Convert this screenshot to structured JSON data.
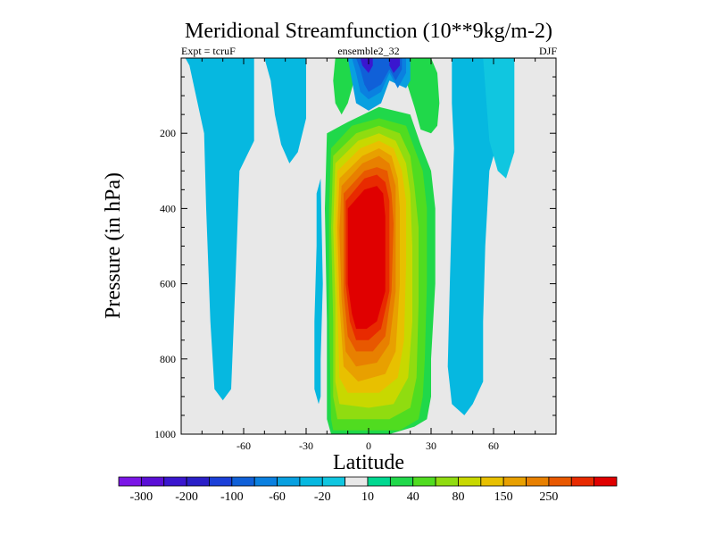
{
  "chart_data": {
    "type": "heatmap",
    "title": "Meridional Streamfunction (10**9kg/m-2)",
    "subtitle_left": "Expt = tcruF",
    "subtitle_center": "ensemble2_32",
    "subtitle_right": "DJF",
    "xlabel": "Latitude",
    "ylabel": "Pressure (in hPa)",
    "xlim": [
      -90,
      90
    ],
    "ylim": [
      1000,
      0
    ],
    "x_ticks": [
      -60,
      -30,
      0,
      30,
      60
    ],
    "y_ticks": [
      200,
      400,
      600,
      800,
      1000
    ],
    "colorbar": {
      "colors": [
        "#7b16e6",
        "#5a0fd6",
        "#3a16cf",
        "#2a1fc8",
        "#1b40d8",
        "#1060d8",
        "#0a80e0",
        "#08a0e0",
        "#06b8e0",
        "#10c6e0",
        "#e8e8e8",
        "#00d890",
        "#20d84a",
        "#50dc20",
        "#90dc10",
        "#c8d800",
        "#e8c000",
        "#e8a000",
        "#e88000",
        "#e85800",
        "#e82a00",
        "#e00000"
      ],
      "labels": [
        "-300",
        "-200",
        "-100",
        "-60",
        "-20",
        "10",
        "40",
        "80",
        "150",
        "250"
      ]
    },
    "contour_regions": [
      {
        "level": "-20",
        "color": "#06b8e0",
        "polygon": [
          [
            -88,
            0
          ],
          [
            -55,
            0
          ],
          [
            -55,
            220
          ],
          [
            -62,
            300
          ],
          [
            -64,
            600
          ],
          [
            -66,
            880
          ],
          [
            -70,
            910
          ],
          [
            -74,
            880
          ],
          [
            -76,
            700
          ],
          [
            -78,
            400
          ],
          [
            -79,
            200
          ],
          [
            -86,
            20
          ]
        ]
      },
      {
        "level": "-20",
        "color": "#06b8e0",
        "polygon": [
          [
            -50,
            0
          ],
          [
            -30,
            0
          ],
          [
            -30,
            160
          ],
          [
            -34,
            250
          ],
          [
            -38,
            280
          ],
          [
            -42,
            230
          ],
          [
            -45,
            150
          ],
          [
            -47,
            60
          ]
        ]
      },
      {
        "level": "-20",
        "color": "#06b8e0",
        "polygon": [
          [
            -62,
            0
          ],
          [
            -60,
            0
          ],
          [
            -60,
            60
          ],
          [
            -61,
            120
          ],
          [
            -62,
            60
          ]
        ]
      },
      {
        "level": "-20",
        "color": "#06b8e0",
        "polygon": [
          [
            -25,
            360
          ],
          [
            -23,
            320
          ],
          [
            -22,
            600
          ],
          [
            -23,
            800
          ],
          [
            -23,
            900
          ],
          [
            -24,
            920
          ],
          [
            -26,
            880
          ],
          [
            -26,
            700
          ],
          [
            -25,
            500
          ]
        ]
      },
      {
        "level": "-20",
        "color": "#06b8e0",
        "polygon": [
          [
            40,
            0
          ],
          [
            62,
            0
          ],
          [
            62,
            220
          ],
          [
            58,
            300
          ],
          [
            56,
            500
          ],
          [
            55,
            700
          ],
          [
            55,
            860
          ],
          [
            50,
            920
          ],
          [
            46,
            950
          ],
          [
            40,
            920
          ],
          [
            38,
            820
          ],
          [
            39,
            600
          ],
          [
            40,
            400
          ],
          [
            41,
            240
          ],
          [
            40,
            120
          ]
        ]
      },
      {
        "level": "-20",
        "color": "#10c6e0",
        "polygon": [
          [
            55,
            0
          ],
          [
            70,
            0
          ],
          [
            70,
            250
          ],
          [
            66,
            320
          ],
          [
            62,
            300
          ],
          [
            58,
            220
          ]
        ]
      },
      {
        "level": "10",
        "color": "#20d84a",
        "polygon": [
          [
            -16,
            0
          ],
          [
            -8,
            0
          ],
          [
            -7,
            60
          ],
          [
            -10,
            120
          ],
          [
            -13,
            150
          ],
          [
            -16,
            120
          ],
          [
            -17,
            60
          ]
        ]
      },
      {
        "level": "10",
        "color": "#20d84a",
        "polygon": [
          [
            -20,
            200
          ],
          [
            -10,
            170
          ],
          [
            5,
            130
          ],
          [
            20,
            150
          ],
          [
            25,
            230
          ],
          [
            30,
            300
          ],
          [
            32,
            400
          ],
          [
            32,
            600
          ],
          [
            30,
            800
          ],
          [
            30,
            900
          ],
          [
            28,
            960
          ],
          [
            22,
            980
          ],
          [
            10,
            1000
          ],
          [
            -18,
            1000
          ],
          [
            -20,
            960
          ],
          [
            -20,
            700
          ],
          [
            -21,
            400
          ]
        ]
      },
      {
        "level": "10",
        "color": "#20d84a",
        "polygon": [
          [
            16,
            0
          ],
          [
            30,
            0
          ],
          [
            33,
            40
          ],
          [
            34,
            120
          ],
          [
            33,
            180
          ],
          [
            30,
            200
          ],
          [
            25,
            190
          ],
          [
            22,
            130
          ],
          [
            18,
            60
          ]
        ]
      },
      {
        "level": "40",
        "color": "#50dc20",
        "polygon": [
          [
            -18,
            240
          ],
          [
            -8,
            180
          ],
          [
            5,
            160
          ],
          [
            18,
            180
          ],
          [
            22,
            240
          ],
          [
            26,
            300
          ],
          [
            28,
            400
          ],
          [
            28,
            600
          ],
          [
            27,
            800
          ],
          [
            26,
            900
          ],
          [
            24,
            960
          ],
          [
            15,
            990
          ],
          [
            -17,
            990
          ],
          [
            -18,
            960
          ],
          [
            -19,
            700
          ],
          [
            -19,
            400
          ]
        ]
      },
      {
        "level": "80",
        "color": "#90dc10",
        "polygon": [
          [
            -17,
            260
          ],
          [
            -6,
            200
          ],
          [
            5,
            180
          ],
          [
            15,
            200
          ],
          [
            20,
            260
          ],
          [
            22,
            340
          ],
          [
            24,
            450
          ],
          [
            24,
            650
          ],
          [
            23,
            850
          ],
          [
            20,
            930
          ],
          [
            10,
            960
          ],
          [
            -15,
            960
          ],
          [
            -17,
            900
          ],
          [
            -17,
            700
          ],
          [
            -18,
            450
          ]
        ]
      },
      {
        "level": "150",
        "color": "#c8d800",
        "polygon": [
          [
            -16,
            280
          ],
          [
            -5,
            220
          ],
          [
            5,
            200
          ],
          [
            13,
            220
          ],
          [
            18,
            280
          ],
          [
            20,
            360
          ],
          [
            21,
            500
          ],
          [
            21,
            700
          ],
          [
            19,
            850
          ],
          [
            12,
            920
          ],
          [
            0,
            930
          ],
          [
            -14,
            920
          ],
          [
            -16,
            860
          ],
          [
            -16,
            650
          ],
          [
            -17,
            450
          ]
        ]
      },
      {
        "level": "150",
        "color": "#e8c000",
        "polygon": [
          [
            -15,
            300
          ],
          [
            -4,
            240
          ],
          [
            5,
            220
          ],
          [
            12,
            240
          ],
          [
            16,
            300
          ],
          [
            18,
            380
          ],
          [
            18,
            550
          ],
          [
            17,
            750
          ],
          [
            14,
            850
          ],
          [
            5,
            890
          ],
          [
            -10,
            890
          ],
          [
            -14,
            850
          ],
          [
            -15,
            650
          ],
          [
            -16,
            450
          ]
        ]
      },
      {
        "level": "150",
        "color": "#e8a000",
        "polygon": [
          [
            -14,
            320
          ],
          [
            -3,
            260
          ],
          [
            5,
            240
          ],
          [
            11,
            260
          ],
          [
            14,
            320
          ],
          [
            15,
            400
          ],
          [
            15,
            600
          ],
          [
            13,
            780
          ],
          [
            8,
            840
          ],
          [
            -5,
            860
          ],
          [
            -12,
            820
          ],
          [
            -14,
            650
          ],
          [
            -15,
            450
          ]
        ]
      },
      {
        "level": "250",
        "color": "#e88000",
        "polygon": [
          [
            -13,
            340
          ],
          [
            -3,
            280
          ],
          [
            5,
            260
          ],
          [
            10,
            280
          ],
          [
            13,
            340
          ],
          [
            13,
            420
          ],
          [
            13,
            620
          ],
          [
            10,
            760
          ],
          [
            4,
            810
          ],
          [
            -6,
            820
          ],
          [
            -11,
            780
          ],
          [
            -13,
            640
          ],
          [
            -14,
            460
          ]
        ]
      },
      {
        "level": "250",
        "color": "#e85800",
        "polygon": [
          [
            -12,
            360
          ],
          [
            -2,
            300
          ],
          [
            4,
            290
          ],
          [
            9,
            300
          ],
          [
            11,
            360
          ],
          [
            12,
            440
          ],
          [
            11,
            620
          ],
          [
            8,
            740
          ],
          [
            2,
            780
          ],
          [
            -6,
            780
          ],
          [
            -10,
            740
          ],
          [
            -12,
            620
          ],
          [
            -12,
            460
          ]
        ]
      },
      {
        "level": "250",
        "color": "#e82a00",
        "polygon": [
          [
            -11,
            380
          ],
          [
            -2,
            320
          ],
          [
            4,
            310
          ],
          [
            8,
            330
          ],
          [
            10,
            380
          ],
          [
            10,
            460
          ],
          [
            10,
            620
          ],
          [
            6,
            720
          ],
          [
            0,
            750
          ],
          [
            -6,
            750
          ],
          [
            -9,
            700
          ],
          [
            -11,
            600
          ],
          [
            -11,
            480
          ]
        ]
      },
      {
        "level": "250",
        "color": "#e00000",
        "polygon": [
          [
            -10,
            400
          ],
          [
            -2,
            350
          ],
          [
            4,
            340
          ],
          [
            7,
            360
          ],
          [
            8,
            420
          ],
          [
            8,
            520
          ],
          [
            8,
            620
          ],
          [
            4,
            700
          ],
          [
            -1,
            720
          ],
          [
            -6,
            720
          ],
          [
            -8,
            680
          ],
          [
            -10,
            600
          ],
          [
            -10,
            480
          ]
        ]
      },
      {
        "level": "-20",
        "color": "#08a0e0",
        "polygon": [
          [
            -10,
            0
          ],
          [
            20,
            0
          ],
          [
            20,
            60
          ],
          [
            18,
            80
          ],
          [
            10,
            60
          ],
          [
            6,
            120
          ],
          [
            0,
            140
          ],
          [
            -6,
            120
          ],
          [
            -8,
            60
          ]
        ]
      },
      {
        "level": "-60",
        "color": "#0a80e0",
        "polygon": [
          [
            -8,
            0
          ],
          [
            18,
            0
          ],
          [
            18,
            40
          ],
          [
            14,
            80
          ],
          [
            10,
            40
          ],
          [
            6,
            90
          ],
          [
            0,
            110
          ],
          [
            -4,
            90
          ],
          [
            -6,
            40
          ]
        ]
      },
      {
        "level": "-100",
        "color": "#1060d8",
        "polygon": [
          [
            -6,
            0
          ],
          [
            16,
            0
          ],
          [
            16,
            30
          ],
          [
            13,
            60
          ],
          [
            10,
            30
          ],
          [
            6,
            70
          ],
          [
            0,
            90
          ],
          [
            -2,
            70
          ],
          [
            -4,
            30
          ]
        ]
      },
      {
        "level": "-200",
        "color": "#3a16cf",
        "polygon": [
          [
            -4,
            0
          ],
          [
            2,
            0
          ],
          [
            2,
            20
          ],
          [
            0,
            40
          ],
          [
            -3,
            20
          ]
        ]
      },
      {
        "level": "-200",
        "color": "#3a16cf",
        "polygon": [
          [
            10,
            0
          ],
          [
            15,
            0
          ],
          [
            15,
            20
          ],
          [
            12,
            40
          ],
          [
            10,
            20
          ]
        ]
      }
    ]
  }
}
